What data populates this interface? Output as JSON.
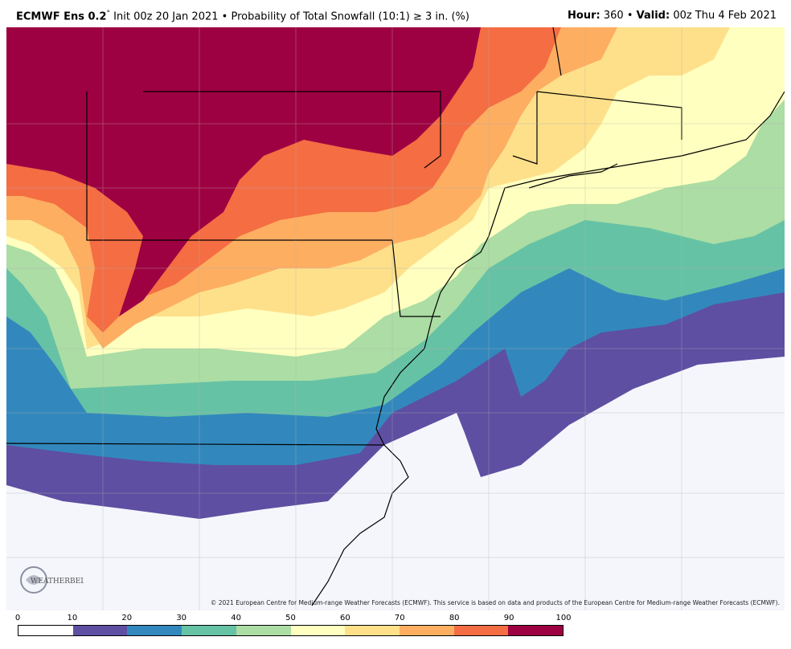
{
  "header": {
    "model": "ECMWF Ens 0.2",
    "deg": "°",
    "init": "Init 00z 20 Jan 2021",
    "bullet": "•",
    "product": "Probability of Total Snowfall (10:1)",
    "threshold": "≥ 3 in. (%)",
    "hour_label": "Hour:",
    "hour_value": "360",
    "valid_label": "Valid:",
    "valid_value": "00z Thu 4 Feb 2021"
  },
  "copyright": "© 2021 European Centre for Medium-range Weather Forecasts (ECMWF). This service is based on data and products of the European Centre for Medium-range Weather Forecasts (ECMWF).",
  "logo_text": "WEATHERBELL",
  "colorbar": {
    "ticks": [
      "0",
      "10",
      "20",
      "30",
      "40",
      "50",
      "60",
      "70",
      "80",
      "90",
      "100"
    ],
    "colors": [
      "#ffffff",
      "#5e4fa2",
      "#3288bd",
      "#66c2a5",
      "#abdda4",
      "#ffffbf",
      "#fee08b",
      "#fdae61",
      "#f46d43",
      "#9e0142"
    ]
  }
}
